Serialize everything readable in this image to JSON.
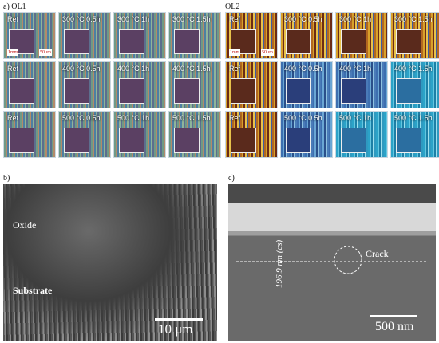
{
  "panel_a": {
    "label": "a) OL1",
    "rows": [
      [
        "Ref",
        "300 °C 0.5h",
        "300 °C 1h",
        "300 °C 1.5h"
      ],
      [
        "Ref",
        "400 °C 0.5h",
        "400 °C 1h",
        "400 °C 1.5h"
      ],
      [
        "Ref",
        "500 °C 0.5h",
        "500 °C 1h",
        "500 °C 1.5h"
      ]
    ],
    "scale_1mm": "1mm",
    "scale_50um": "50μm"
  },
  "panel_a2": {
    "label": "OL2",
    "rows": [
      [
        "Ref",
        "300 °C 0.5h",
        "300 °C 1h",
        "300 °C 1.5h"
      ],
      [
        "Ref",
        "400 °C 0.5h",
        "400 °C 1h",
        "400 °C 1.5h"
      ],
      [
        "Ref",
        "500 °C 0.5h",
        "500 °C 1h",
        "500 °C 1.5h"
      ]
    ],
    "scale_1mm": "1mm",
    "scale_50um": "50μm"
  },
  "panel_b": {
    "label": "b)",
    "oxide": "Oxide",
    "substrate": "Substrate",
    "scale": "10 μm"
  },
  "panel_c": {
    "label": "c)",
    "crack": "Crack",
    "thickness": "196.9 nm (cs)",
    "scale": "500 nm"
  }
}
